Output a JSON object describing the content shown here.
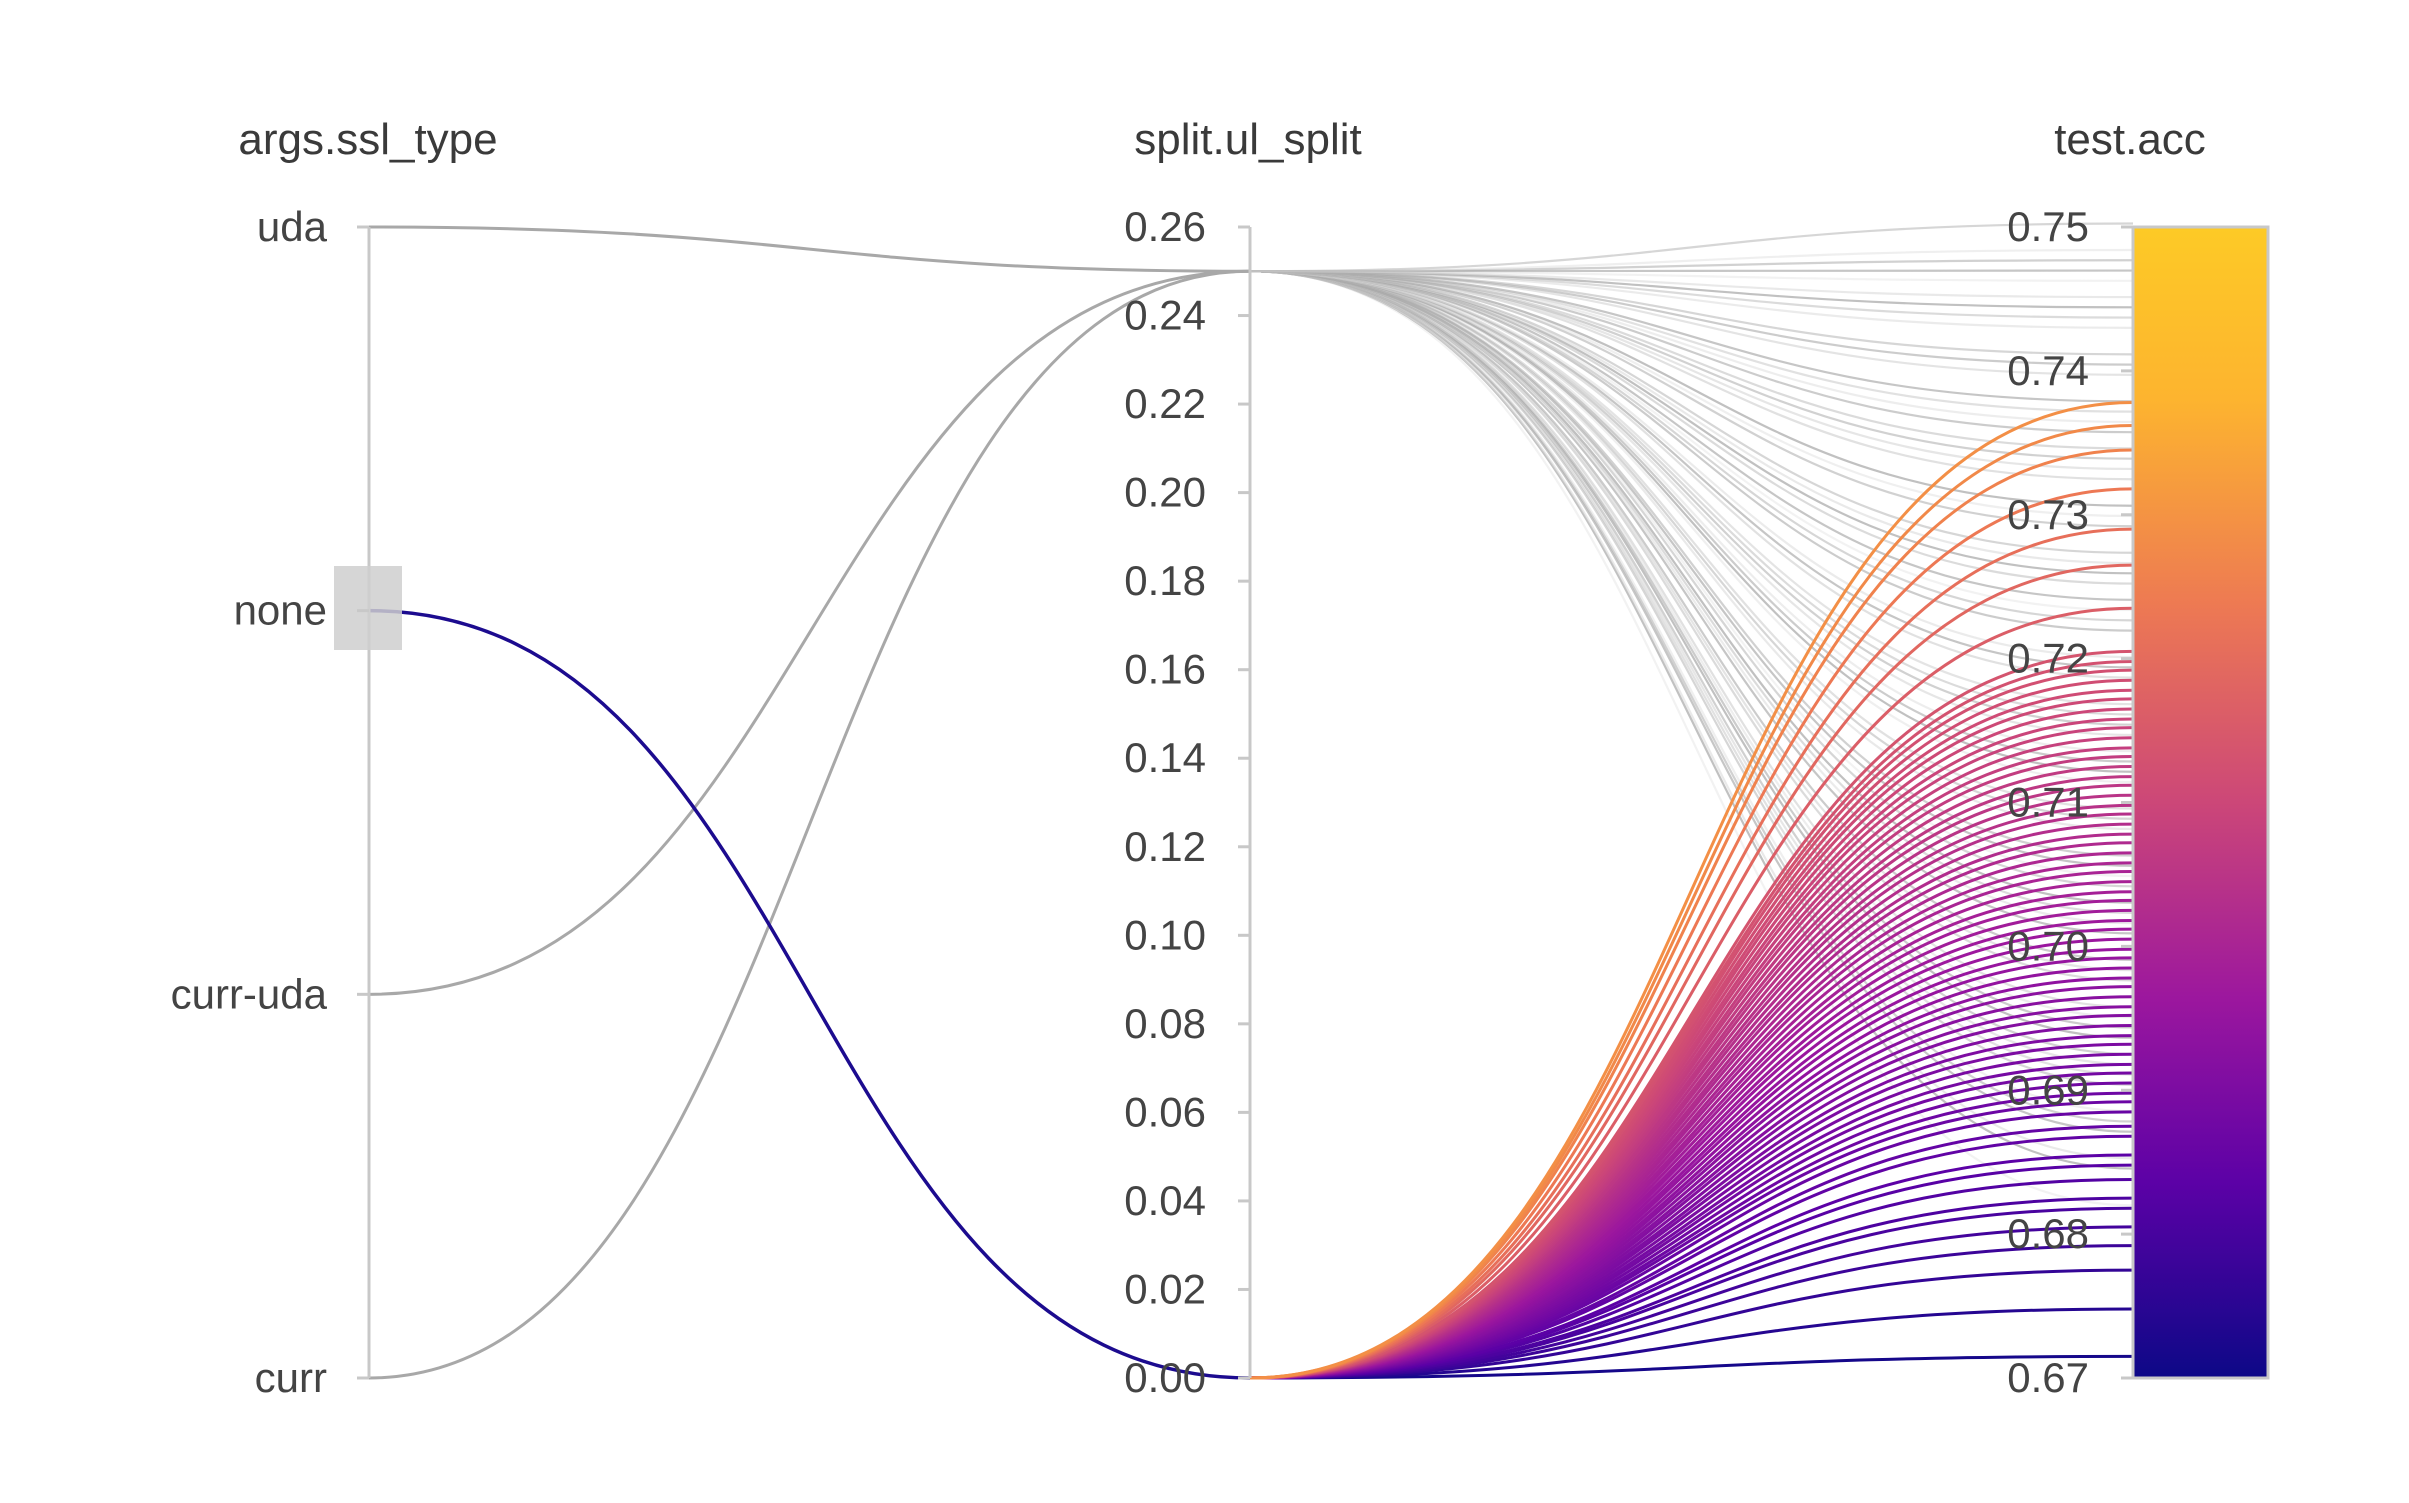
{
  "chart_data": {
    "type": "parallel-coordinates",
    "title": "",
    "axes": [
      {
        "name": "args.ssl_type",
        "kind": "categorical",
        "categories": [
          "uda",
          "none",
          "curr-uda",
          "curr"
        ],
        "selected": "none"
      },
      {
        "name": "split.ul_split",
        "kind": "numeric",
        "range": [
          0,
          0.26
        ],
        "ticks": [
          "0.26",
          "0.24",
          "0.22",
          "0.20",
          "0.18",
          "0.16",
          "0.14",
          "0.12",
          "0.10",
          "0.08",
          "0.06",
          "0.04",
          "0.02",
          "0.00"
        ]
      },
      {
        "name": "test.acc",
        "kind": "numeric",
        "range": [
          0.67,
          0.75
        ],
        "ticks": [
          "0.75",
          "0.74",
          "0.73",
          "0.72",
          "0.71",
          "0.70",
          "0.69",
          "0.68",
          "0.67"
        ],
        "colorscale": true
      }
    ],
    "colors": {
      "unselected": "#a8a8a8",
      "faded": "#d9d9d9",
      "scale": [
        "#0d0887",
        "#5c01a6",
        "#9c179e",
        "#cc4778",
        "#ed7953",
        "#fdb42f",
        "#f0f921"
      ]
    },
    "highlighted_runs": [
      {
        "ssl_type": "none",
        "ul_split": 0.0,
        "acc": [
          0.6715,
          0.6748,
          0.6775,
          0.6792,
          0.6805,
          0.6818,
          0.6825,
          0.6838,
          0.6848,
          0.6855,
          0.6868,
          0.6875,
          0.6885,
          0.6892,
          0.6898,
          0.6905,
          0.6912,
          0.6918,
          0.6925,
          0.6932,
          0.6938,
          0.6945,
          0.6952,
          0.6958,
          0.6965,
          0.6972,
          0.6978,
          0.6985,
          0.6992,
          0.6998,
          0.7005,
          0.7012,
          0.7018,
          0.7025,
          0.7032,
          0.7038,
          0.7045,
          0.7052,
          0.7058,
          0.7065,
          0.7072,
          0.7078,
          0.7085,
          0.7092,
          0.7098,
          0.7105,
          0.7112,
          0.7118,
          0.7125,
          0.7132,
          0.7138,
          0.7145,
          0.7152,
          0.7158,
          0.7165,
          0.7172,
          0.7178,
          0.7185,
          0.7192,
          0.7198,
          0.7205,
          0.7235,
          0.7265,
          0.729,
          0.7318,
          0.7345,
          0.7362,
          0.7378
        ]
      }
    ],
    "background_runs": [
      {
        "ssl_type": "uda",
        "ul_split": 0.25
      },
      {
        "ssl_type": "curr-uda",
        "ul_split": 0.25
      },
      {
        "ssl_type": "curr",
        "ul_split": 0.25
      }
    ]
  }
}
